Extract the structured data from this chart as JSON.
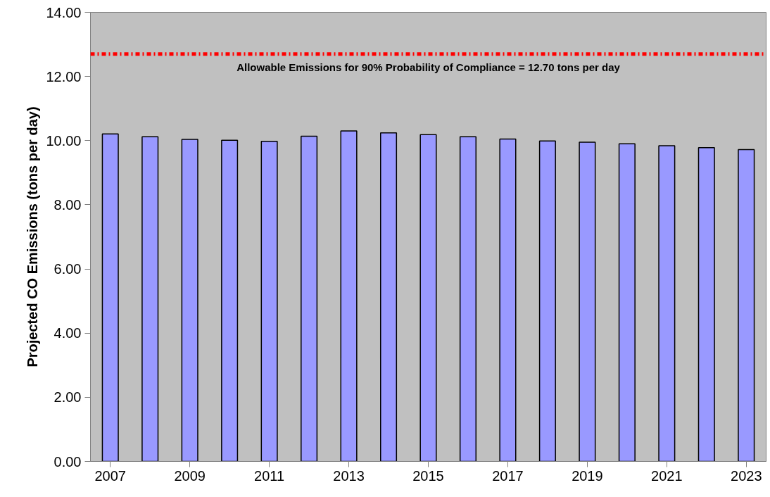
{
  "chart_data": {
    "type": "bar",
    "ylabel": "Projected CO Emissions (tons per day)",
    "categories": [
      "2007",
      null,
      "2009",
      null,
      "2011",
      null,
      "2013",
      null,
      "2015",
      null,
      "2017",
      null,
      "2019",
      null,
      "2021",
      null,
      "2023"
    ],
    "values": [
      10.21,
      10.12,
      10.04,
      10.01,
      9.98,
      10.14,
      10.3,
      10.24,
      10.19,
      10.12,
      10.05,
      9.99,
      9.95,
      9.9,
      9.84,
      9.78,
      9.72
    ],
    "color": "#9999ff",
    "ylim": [
      0,
      14
    ],
    "yticks": [
      {
        "value": 0,
        "label": "0.00"
      },
      {
        "value": 2,
        "label": "2.00"
      },
      {
        "value": 4,
        "label": "4.00"
      },
      {
        "value": 6,
        "label": "6.00"
      },
      {
        "value": 8,
        "label": "8.00"
      },
      {
        "value": 10,
        "label": "10.00"
      },
      {
        "value": 12,
        "label": "12.00"
      },
      {
        "value": 14,
        "label": "14.00"
      }
    ],
    "ref_lines": [
      {
        "axis": "y",
        "value": 12.7,
        "label": "Allowable Emissions for 90% Probability of Compliance = 12.70 tons per day",
        "color": "#ff0000",
        "line_style": "dashdot"
      }
    ],
    "grid": false
  }
}
